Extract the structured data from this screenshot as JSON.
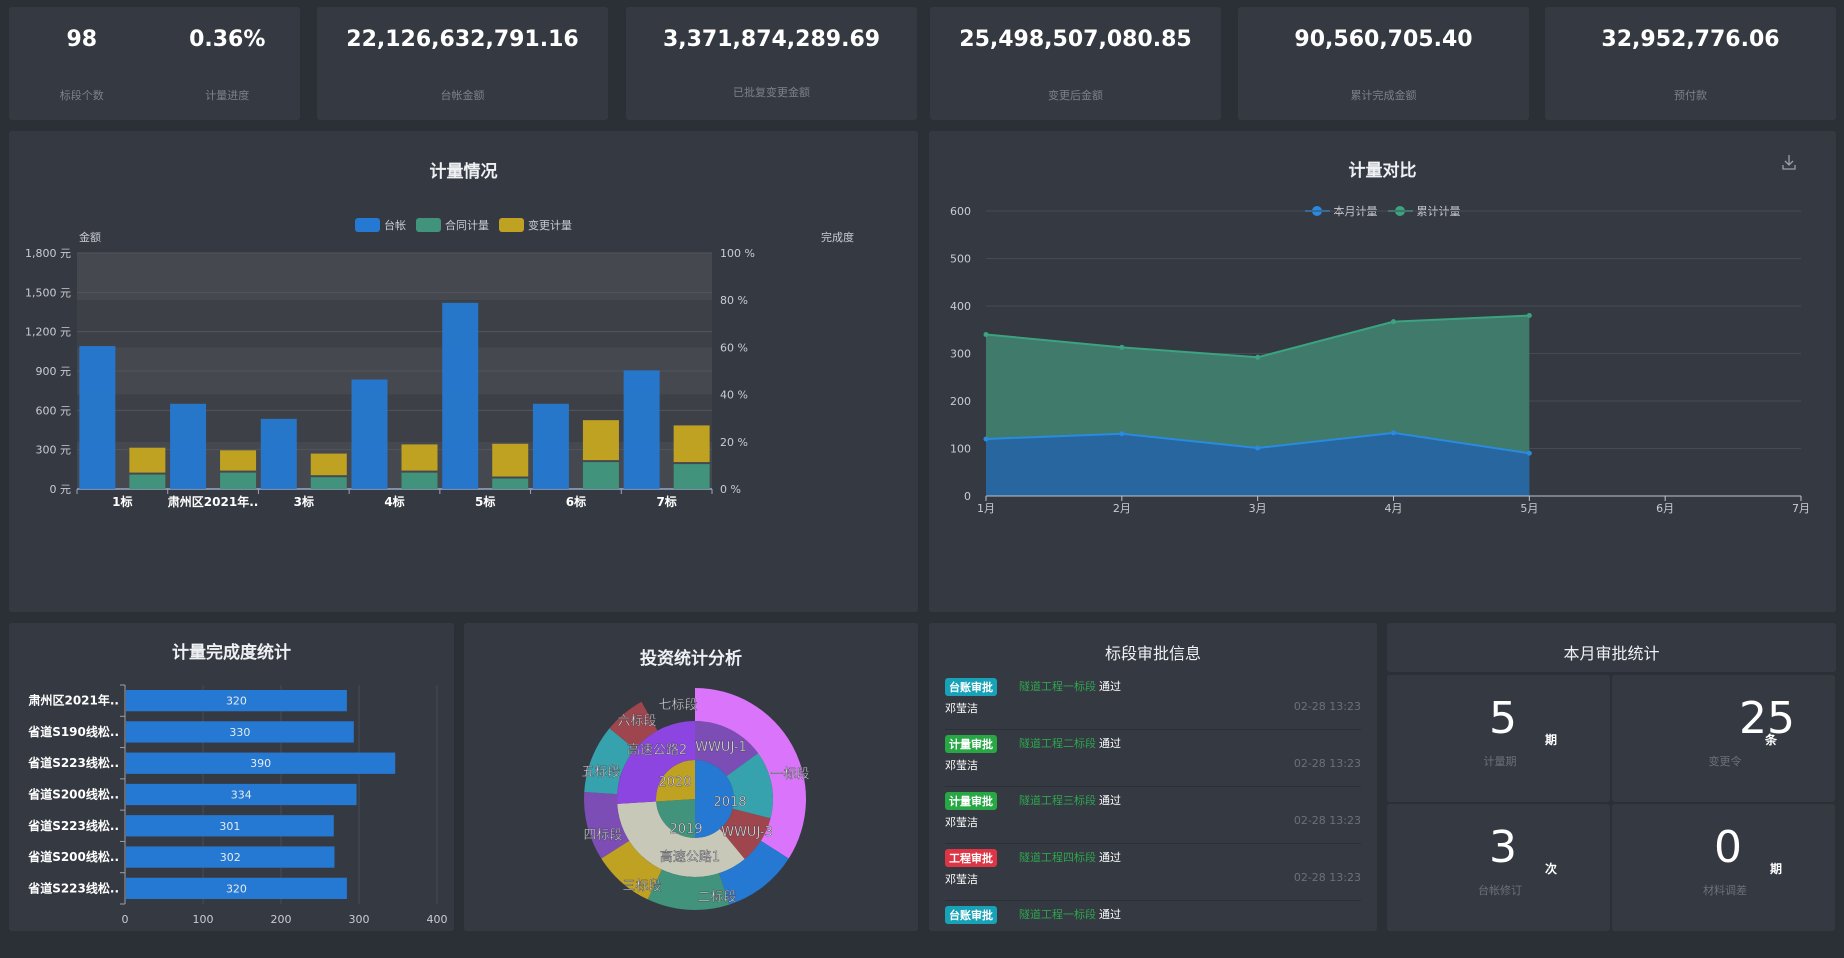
{
  "kpis": {
    "section_count": {
      "value": "98",
      "label": "标段个数"
    },
    "progress": {
      "value": "0.36%",
      "label": "计量进度"
    },
    "ledger_amount": {
      "value": "22,126,632,791.16",
      "label": "台帐金额"
    },
    "approved_change": {
      "value": "3,371,874,289.69",
      "label": "已批复变更金额"
    },
    "after_change": {
      "value": "25,498,507,080.85",
      "label": "变更后金额"
    },
    "cumulative_done": {
      "value": "90,560,705.40",
      "label": "累计完成金额"
    },
    "prepayment": {
      "value": "32,952,776.06",
      "label": "预付款"
    }
  },
  "chart_data": [
    {
      "id": "metering",
      "type": "bar",
      "title": "计量情况",
      "categories": [
        "1标",
        "肃州区2021年..",
        "3标",
        "4标",
        "5标",
        "6标",
        "7标"
      ],
      "series": [
        {
          "name": "台帐",
          "color": "#2579d2",
          "values": [
            1090,
            650,
            535,
            835,
            1420,
            650,
            905
          ]
        },
        {
          "name": "合同计量",
          "color": "#41937b",
          "stack": "s",
          "values": [
            110,
            125,
            90,
            125,
            80,
            205,
            190
          ]
        },
        {
          "name": "变更计量",
          "color": "#c0a222",
          "stack": "s",
          "values": [
            205,
            170,
            180,
            215,
            265,
            320,
            295
          ]
        }
      ],
      "ylabel": "金额",
      "ylabel_right": "完成度",
      "ylim": [
        0,
        1800
      ],
      "yticks": [
        "0 元",
        "300 元",
        "600 元",
        "900 元",
        "1,200 元",
        "1,500 元",
        "1,800 元"
      ],
      "ylim_right": [
        0,
        100
      ],
      "yticks_right": [
        "0 %",
        "20 %",
        "40 %",
        "60 %",
        "80 %",
        "100 %"
      ],
      "legend": "top-center",
      "grid": true
    },
    {
      "id": "comparison",
      "type": "area",
      "title": "计量对比",
      "x": [
        "1月",
        "2月",
        "3月",
        "4月",
        "5月",
        "6月",
        "7月"
      ],
      "series": [
        {
          "name": "本月计量",
          "color": "#2a8ae0",
          "values": [
            120,
            131,
            101,
            133,
            90,
            null,
            null
          ]
        },
        {
          "name": "累计计量",
          "color": "#3ba37f",
          "values": [
            340,
            313,
            292,
            367,
            380,
            null,
            null
          ]
        }
      ],
      "ylim": [
        0,
        600
      ],
      "yticks": [
        "0",
        "100",
        "200",
        "300",
        "400",
        "500",
        "600"
      ],
      "legend": "top-center",
      "grid": true
    },
    {
      "id": "completion",
      "type": "bar",
      "orientation": "horizontal",
      "title": "计量完成度统计",
      "categories": [
        "肃州区2021年..",
        "省道S190线松..",
        "省道S223线松..",
        "省道S200线松..",
        "省道S223线松..",
        "省道S200线松..",
        "省道S223线松.."
      ],
      "values": [
        320,
        330,
        390,
        334,
        301,
        302,
        320
      ],
      "color": "#2579d2",
      "xlim": [
        0,
        400
      ],
      "xticks": [
        "0",
        "100",
        "200",
        "300",
        "400"
      ],
      "grid": true
    },
    {
      "id": "investment",
      "type": "pie",
      "variant": "sunburst",
      "title": "投资统计分析",
      "rings": [
        {
          "level": "year",
          "slices": [
            {
              "label": "2018",
              "value": 25,
              "color": "#2579d2"
            },
            {
              "label": "2019",
              "value": 12,
              "color": "#41937b"
            },
            {
              "label": "2020",
              "value": 13,
              "color": "#c0a222"
            }
          ]
        },
        {
          "level": "project",
          "slices": [
            {
              "label": "WWUJ-1",
              "value": 7.5,
              "color": "#7c4db5"
            },
            {
              "label": "",
              "value": 7,
              "color": "#36a2ad"
            },
            {
              "label": "",
              "value": 5,
              "color": "#9e454e"
            },
            {
              "label": "WWUJ-3",
              "value": 5.5,
              "color": "#c8c8b8"
            },
            {
              "label": "高速公路1",
              "value": 12,
              "color": "#c8c8b8"
            },
            {
              "label": "高速公路2",
              "value": 13,
              "color": "#8c45e0"
            }
          ]
        },
        {
          "level": "section",
          "slices": [
            {
              "label": "一标段",
              "value": 17,
              "color": "#da75fb"
            },
            {
              "label": "",
              "value": 5.5,
              "color": "#2579d2"
            },
            {
              "label": "二标段",
              "value": 6,
              "color": "#41937b"
            },
            {
              "label": "三标段",
              "value": 4.5,
              "color": "#c0a222"
            },
            {
              "label": "四标段",
              "value": 5,
              "color": "#7c4db5"
            },
            {
              "label": "",
              "value": 5,
              "color": "#36a2ad"
            },
            {
              "label": "五标段",
              "value": 3,
              "color": "#9e454e"
            },
            {
              "label": "六标段",
              "value": 0,
              "color": "#36a2ad"
            },
            {
              "label": "七标段",
              "value": 0,
              "color": "#da75fb"
            }
          ]
        }
      ]
    }
  ],
  "approvals": {
    "title": "标段审批信息",
    "items": [
      {
        "tag": "台账审批",
        "tag_color": "#17a2b8",
        "section": "隧道工程一标段",
        "result": "通过",
        "user": "邓莹洁",
        "time": "02-28 13:23"
      },
      {
        "tag": "计量审批",
        "tag_color": "#28a745",
        "section": "隧道工程二标段",
        "result": "通过",
        "user": "邓莹洁",
        "time": "02-28 13:23"
      },
      {
        "tag": "计量审批",
        "tag_color": "#28a745",
        "section": "隧道工程三标段",
        "result": "通过",
        "user": "邓莹洁",
        "time": "02-28 13:23"
      },
      {
        "tag": "工程审批",
        "tag_color": "#dc3545",
        "section": "隧道工程四标段",
        "result": "通过",
        "user": "邓莹洁",
        "time": "02-28 13:23"
      },
      {
        "tag": "台账审批",
        "tag_color": "#17a2b8",
        "section": "隧道工程一标段",
        "result": "通过",
        "user": "",
        "time": ""
      }
    ]
  },
  "monthly_stats": {
    "title": "本月审批统计",
    "cells": [
      {
        "value": "5",
        "unit": "期",
        "label": "计量期"
      },
      {
        "value": "25",
        "unit": "条",
        "label": "变更令"
      },
      {
        "value": "3",
        "unit": "次",
        "label": "台帐修订"
      },
      {
        "value": "0",
        "unit": "期",
        "label": "材料调差"
      }
    ]
  },
  "icons": {
    "download": "download-icon"
  }
}
